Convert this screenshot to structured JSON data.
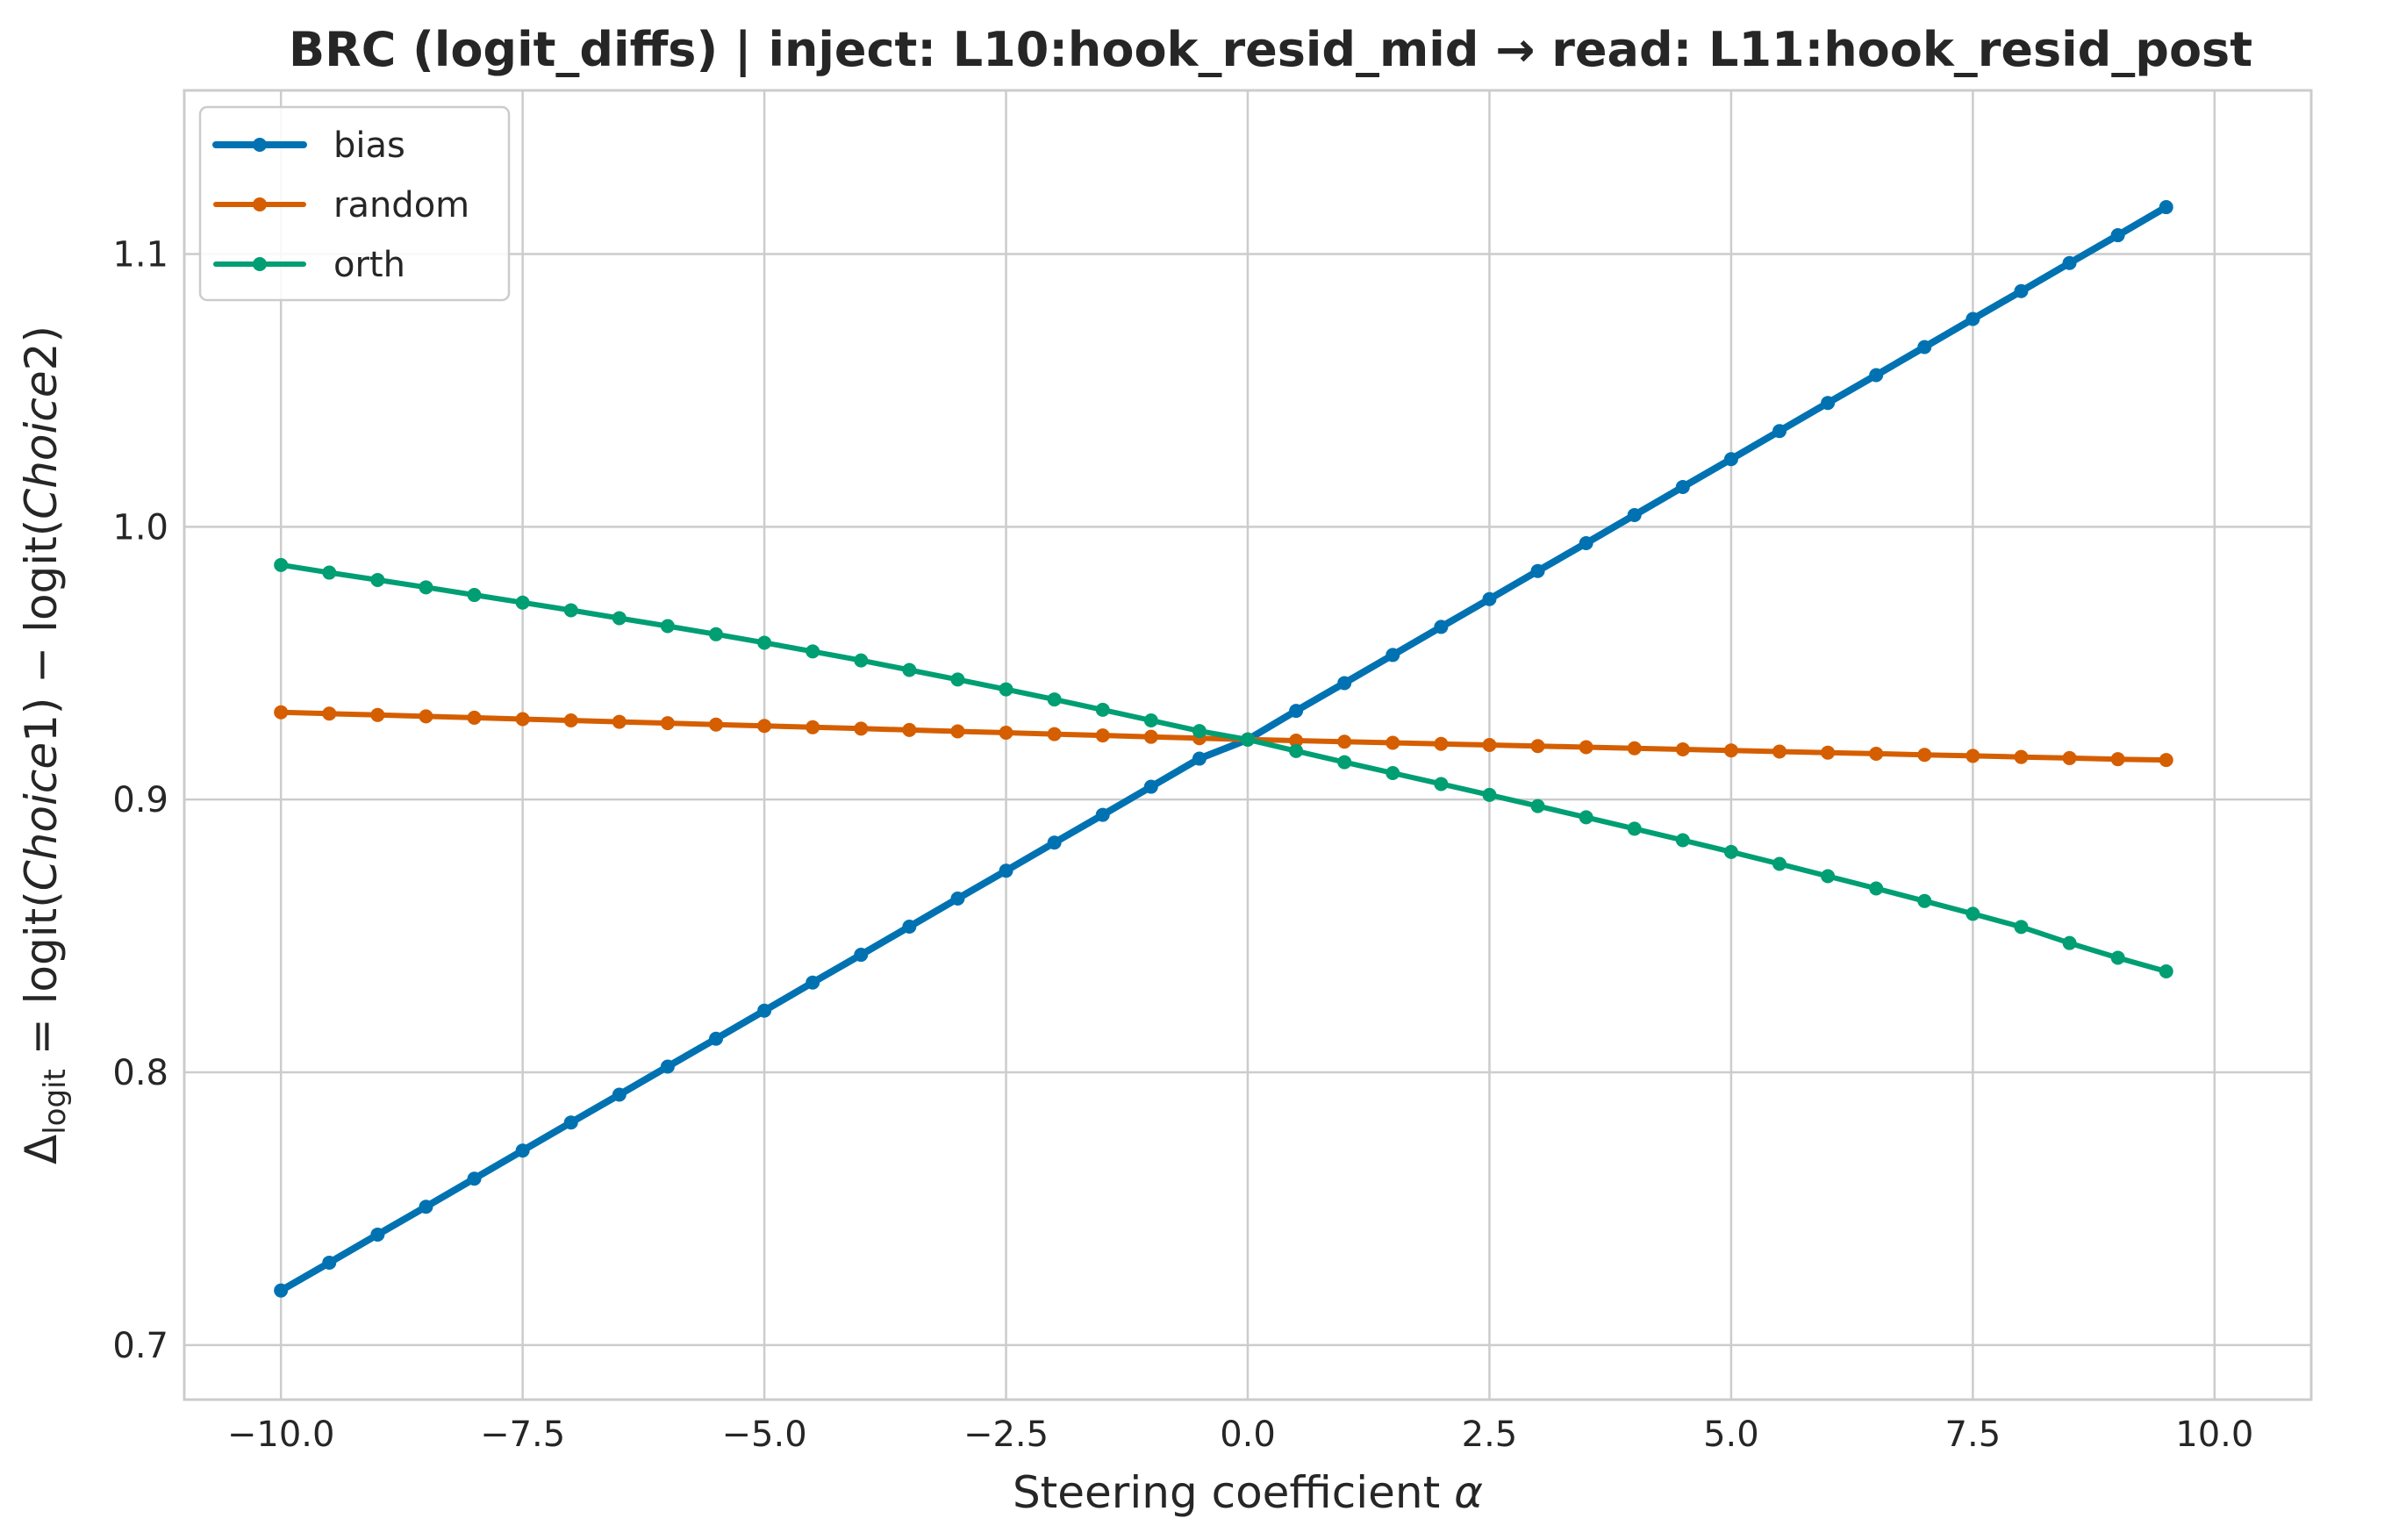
{
  "chart_data": {
    "type": "line",
    "title": "BRC (logit_diffs) | inject: L10:hook_resid_mid → read: L11:hook_resid_post",
    "xlabel": "Steering coefficient α",
    "ylabel": "Δlogit = logit(Choice1) − logit(Choice2)",
    "ylabel_parts": {
      "delta": "Δ",
      "sub": "logit",
      "eq1": " = logit(",
      "c1": "Choice",
      "c1n": "1) − logit(",
      "c2": "Choice",
      "c2n": "2)"
    },
    "xlabel_parts": {
      "text": "Steering coefficient ",
      "symbol": "α"
    },
    "xlim": [
      -11,
      11
    ],
    "ylim": [
      0.68,
      1.16
    ],
    "xticks": [
      -10.0,
      -7.5,
      -5.0,
      -2.5,
      0.0,
      2.5,
      5.0,
      7.5,
      10.0
    ],
    "xtick_labels": [
      "−10.0",
      "−7.5",
      "−5.0",
      "−2.5",
      "0.0",
      "2.5",
      "5.0",
      "7.5",
      "10.0"
    ],
    "yticks": [
      0.7,
      0.8,
      0.9,
      1.0,
      1.1
    ],
    "ytick_labels": [
      "0.7",
      "0.8",
      "0.9",
      "1.0",
      "1.1"
    ],
    "grid": true,
    "legend_position": "top-left",
    "x": [
      -10.0,
      -9.5,
      -9.0,
      -8.5,
      -8.0,
      -7.5,
      -7.0,
      -6.5,
      -6.0,
      -5.5,
      -5.0,
      -4.5,
      -4.0,
      -3.5,
      -3.0,
      -2.5,
      -2.0,
      -1.5,
      -1.0,
      -0.5,
      0.0,
      0.5,
      1.0,
      1.5,
      2.0,
      2.5,
      3.0,
      3.5,
      4.0,
      4.5,
      5.0,
      5.5,
      6.0,
      6.5,
      7.0,
      7.5,
      8.0,
      8.5,
      9.0,
      9.5
    ],
    "series": [
      {
        "name": "bias",
        "color": "#0072b2",
        "linewidth": 8,
        "values": [
          0.72,
          0.7302,
          0.7405,
          0.7507,
          0.761,
          0.7713,
          0.7816,
          0.7918,
          0.8021,
          0.8123,
          0.8226,
          0.8329,
          0.8431,
          0.8534,
          0.8637,
          0.8739,
          0.8842,
          0.8944,
          0.9047,
          0.915,
          0.922,
          0.9325,
          0.9427,
          0.953,
          0.9633,
          0.9735,
          0.9838,
          0.994,
          1.0043,
          1.0146,
          1.0248,
          1.0351,
          1.0454,
          1.0556,
          1.0659,
          1.0762,
          1.0864,
          1.0967,
          1.1069,
          1.1172
        ]
      },
      {
        "name": "random",
        "color": "#d55e00",
        "linewidth": 6,
        "values": [
          0.932,
          0.9315,
          0.931,
          0.9305,
          0.93,
          0.9295,
          0.929,
          0.9285,
          0.928,
          0.9275,
          0.927,
          0.9265,
          0.926,
          0.9255,
          0.925,
          0.9245,
          0.924,
          0.9235,
          0.923,
          0.9225,
          0.922,
          0.9216,
          0.9212,
          0.9208,
          0.9204,
          0.92,
          0.9196,
          0.9192,
          0.9188,
          0.9184,
          0.918,
          0.9176,
          0.9172,
          0.9168,
          0.9164,
          0.916,
          0.9156,
          0.9152,
          0.9148,
          0.9145
        ]
      },
      {
        "name": "orth",
        "color": "#009e73",
        "linewidth": 6,
        "values": [
          0.986,
          0.9832,
          0.9805,
          0.9778,
          0.975,
          0.9722,
          0.9694,
          0.9665,
          0.9636,
          0.9606,
          0.9575,
          0.9543,
          0.951,
          0.9475,
          0.944,
          0.9404,
          0.9367,
          0.9329,
          0.929,
          0.9251,
          0.922,
          0.9178,
          0.9137,
          0.9097,
          0.9057,
          0.9017,
          0.8976,
          0.8935,
          0.8893,
          0.8851,
          0.8808,
          0.8764,
          0.8719,
          0.8674,
          0.8628,
          0.8581,
          0.8533,
          0.8474,
          0.842,
          0.837
        ]
      }
    ]
  }
}
